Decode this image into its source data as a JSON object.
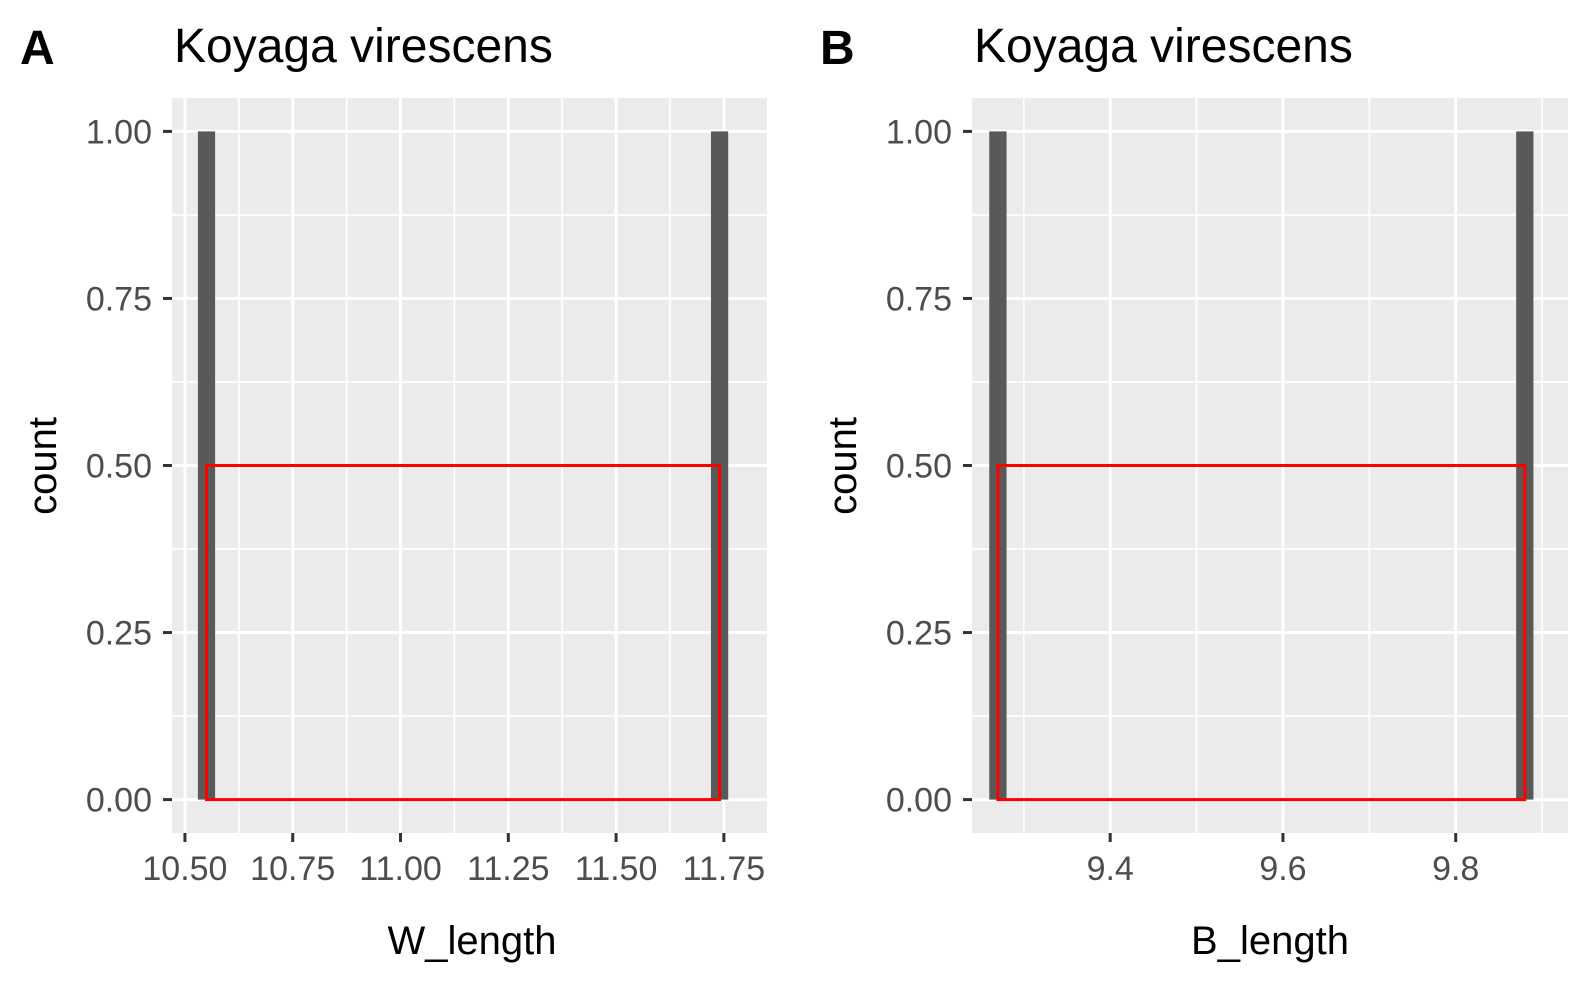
{
  "chart_data": [
    {
      "type": "bar",
      "panel_tag": "A",
      "title": "Koyaga virescens",
      "xlabel": "W_length",
      "ylabel": "count",
      "xlim": [
        10.47,
        11.85
      ],
      "ylim": [
        -0.05,
        1.05
      ],
      "x_ticks": [
        10.5,
        10.75,
        11.0,
        11.25,
        11.5,
        11.75
      ],
      "x_tick_labels": [
        "10.50",
        "10.75",
        "11.00",
        "11.25",
        "11.50",
        "11.75"
      ],
      "y_ticks": [
        0,
        0.25,
        0.5,
        0.75,
        1.0
      ],
      "y_tick_labels": [
        "0.00",
        "0.25",
        "0.50",
        "0.75",
        "1.00"
      ],
      "grid": true,
      "series": [
        {
          "type": "histogram",
          "color": "#595959",
          "bars": [
            {
              "x0": 10.53,
              "x1": 10.57,
              "count": 1
            },
            {
              "x0": 11.72,
              "x1": 11.76,
              "count": 1
            }
          ]
        },
        {
          "type": "rectangle",
          "color": "#ff0000",
          "x0": 10.55,
          "x1": 11.74,
          "y0": 0,
          "y1": 0.5
        }
      ]
    },
    {
      "type": "bar",
      "panel_tag": "B",
      "title": "Koyaga virescens",
      "xlabel": "B_length",
      "ylabel": "count",
      "xlim": [
        9.24,
        9.93
      ],
      "ylim": [
        -0.05,
        1.05
      ],
      "x_ticks": [
        9.4,
        9.6,
        9.8
      ],
      "x_tick_labels": [
        "9.4",
        "9.6",
        "9.8"
      ],
      "y_ticks": [
        0,
        0.25,
        0.5,
        0.75,
        1.0
      ],
      "y_tick_labels": [
        "0.00",
        "0.25",
        "0.50",
        "0.75",
        "1.00"
      ],
      "grid": true,
      "series": [
        {
          "type": "histogram",
          "color": "#595959",
          "bars": [
            {
              "x0": 9.26,
              "x1": 9.28,
              "count": 1
            },
            {
              "x0": 9.87,
              "x1": 9.89,
              "count": 1
            }
          ]
        },
        {
          "type": "rectangle",
          "color": "#ff0000",
          "x0": 9.27,
          "x1": 9.88,
          "y0": 0,
          "y1": 0.5
        }
      ]
    }
  ]
}
